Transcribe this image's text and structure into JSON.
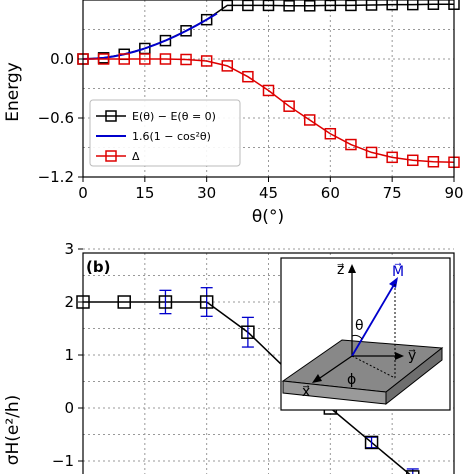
{
  "chart_data": [
    {
      "type": "line",
      "panel": "a",
      "xlabel": "θ(°)",
      "ylabel": "Energy",
      "xlim": [
        0,
        90
      ],
      "ylim": [
        -1.2,
        0.6
      ],
      "xticks": [
        0,
        15,
        30,
        45,
        60,
        75,
        90
      ],
      "xtick_labels": [
        "0",
        "15",
        "30",
        "45",
        "60",
        "75",
        "90"
      ],
      "yticks": [
        -1.2,
        -0.6,
        0.0
      ],
      "ytick_labels": [
        "−1.2",
        "−0.6",
        "0.0"
      ],
      "grid": true,
      "legend": {
        "placement": "lower-left",
        "entries": [
          "E(θ) − E(θ = 0)",
          "1.6(1 − cos²θ)",
          "Δ"
        ]
      },
      "series": [
        {
          "name": "E(θ) − E(θ = 0)",
          "color": "#000000",
          "marker": "square",
          "x": [
            0,
            5,
            10,
            15,
            20,
            25,
            30,
            35,
            40,
            45,
            50,
            55,
            60,
            65,
            70,
            75,
            80,
            85,
            90
          ],
          "y": [
            0.0,
            0.012,
            0.048,
            0.107,
            0.187,
            0.287,
            0.4,
            0.545,
            0.545,
            0.545,
            0.541,
            0.541,
            0.545,
            0.545,
            0.549,
            0.553,
            0.553,
            0.557,
            0.557
          ]
        },
        {
          "name": "1.6(1 − cos²θ)",
          "color": "#0000cc",
          "marker": "none",
          "x": [
            0,
            2.5,
            5,
            7.5,
            10,
            12.5,
            15,
            17.5,
            20,
            22.5,
            25,
            27.5,
            30,
            32.5
          ],
          "y": [
            0.0,
            0.003,
            0.012,
            0.027,
            0.048,
            0.075,
            0.107,
            0.145,
            0.187,
            0.234,
            0.286,
            0.341,
            0.4,
            0.462
          ]
        },
        {
          "name": "Δ",
          "color": "#dd0000",
          "marker": "square",
          "x": [
            0,
            5,
            10,
            15,
            20,
            25,
            30,
            35,
            40,
            45,
            50,
            55,
            60,
            65,
            70,
            75,
            80,
            85,
            90
          ],
          "y": [
            0.0,
            0.0,
            0.0,
            0.0,
            0.0,
            -0.005,
            -0.02,
            -0.07,
            -0.18,
            -0.32,
            -0.48,
            -0.62,
            -0.76,
            -0.87,
            -0.95,
            -1.0,
            -1.03,
            -1.045,
            -1.05
          ]
        }
      ]
    },
    {
      "type": "line",
      "panel": "b",
      "panel_label": "(b)",
      "ylabel": "σH(e²/h)",
      "xlim": [
        0,
        90
      ],
      "ylim": [
        -1.2,
        3
      ],
      "yticks": [
        -1,
        0,
        1,
        2,
        3
      ],
      "ytick_labels": [
        "−1",
        "0",
        "1",
        "2",
        "3"
      ],
      "grid": true,
      "series": [
        {
          "name": "",
          "color": "#000000",
          "marker": "square",
          "error_color": "#0000cc",
          "x": [
            0,
            10,
            20,
            30,
            40,
            50,
            60,
            70,
            80
          ],
          "y": [
            2.0,
            2.0,
            2.0,
            2.0,
            1.43,
            0.68,
            0.0,
            -0.65,
            -1.3
          ],
          "yerr": [
            0.0,
            0.0,
            0.22,
            0.27,
            0.28,
            0.12,
            0.0,
            0.1,
            0.15
          ]
        }
      ],
      "inset": {
        "labels": {
          "z": "z⃗",
          "M": "M⃗",
          "theta": "θ",
          "y": "y⃗",
          "x": "x⃗",
          "phi": "ϕ"
        }
      }
    }
  ]
}
